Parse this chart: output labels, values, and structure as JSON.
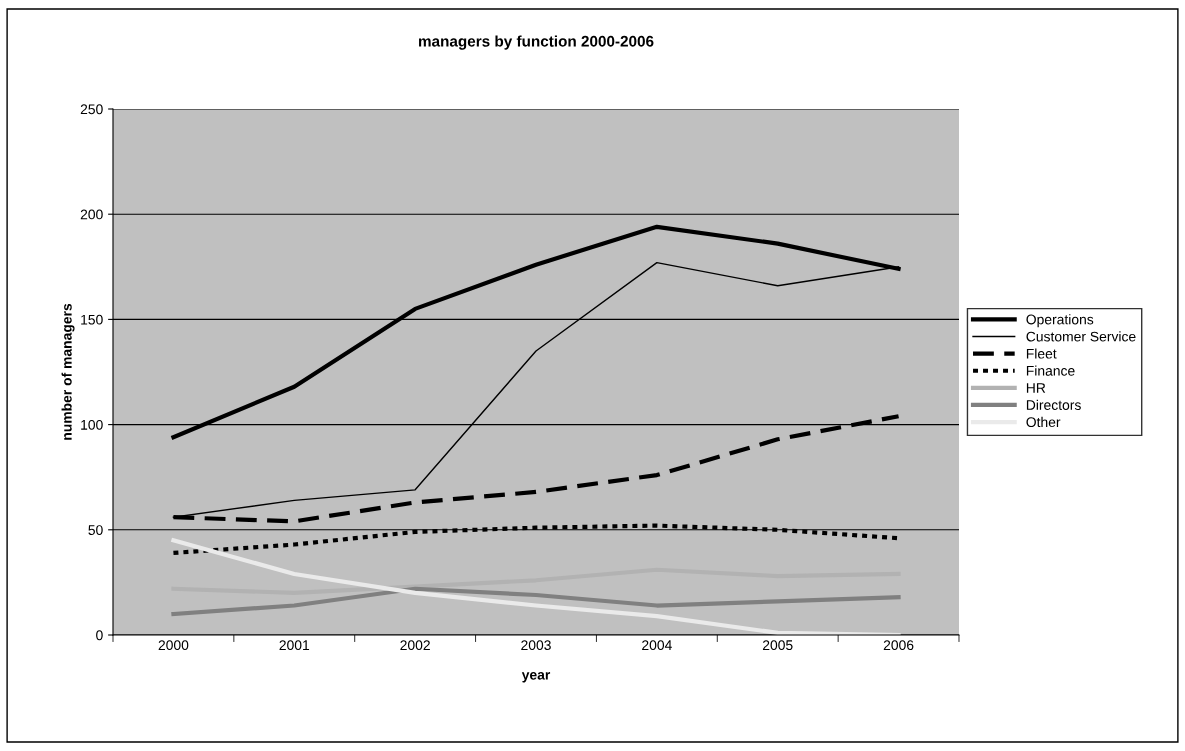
{
  "chart_data": {
    "type": "line",
    "title": "managers by function 2000-2006",
    "xlabel": "year",
    "ylabel": "number of managers",
    "categories": [
      "2000",
      "2001",
      "2002",
      "2003",
      "2004",
      "2005",
      "2006"
    ],
    "ylim": [
      0,
      250
    ],
    "yticks": [
      0,
      50,
      100,
      150,
      200,
      250
    ],
    "grid": "y",
    "legend": "right",
    "marker": "none",
    "series": [
      {
        "name": "Operations",
        "color": "#000000",
        "line_style": "solid",
        "values": [
          94,
          118,
          155,
          176,
          194,
          186,
          174
        ]
      },
      {
        "name": "Customer Service",
        "color": "#000000",
        "line_style": "solid",
        "values": [
          56,
          64,
          69,
          135,
          177,
          166,
          175
        ]
      },
      {
        "name": "Fleet",
        "color": "#000000",
        "line_style": "dashed",
        "values": [
          56,
          54,
          63,
          68,
          76,
          93,
          104
        ]
      },
      {
        "name": "Finance",
        "color": "#000000",
        "line_style": "dotted",
        "values": [
          39,
          43,
          49,
          51,
          52,
          50,
          46
        ]
      },
      {
        "name": "HR",
        "color": "#b2b2b2",
        "line_style": "solid",
        "values": [
          22,
          20,
          23,
          26,
          31,
          28,
          29
        ]
      },
      {
        "name": "Directors",
        "color": "#808080",
        "line_style": "solid",
        "values": [
          10,
          14,
          22,
          19,
          14,
          16,
          18
        ]
      },
      {
        "name": "Other",
        "color": "#eaeaea",
        "line_style": "solid",
        "values": [
          45,
          29,
          20,
          14,
          9,
          1,
          0
        ]
      }
    ]
  }
}
